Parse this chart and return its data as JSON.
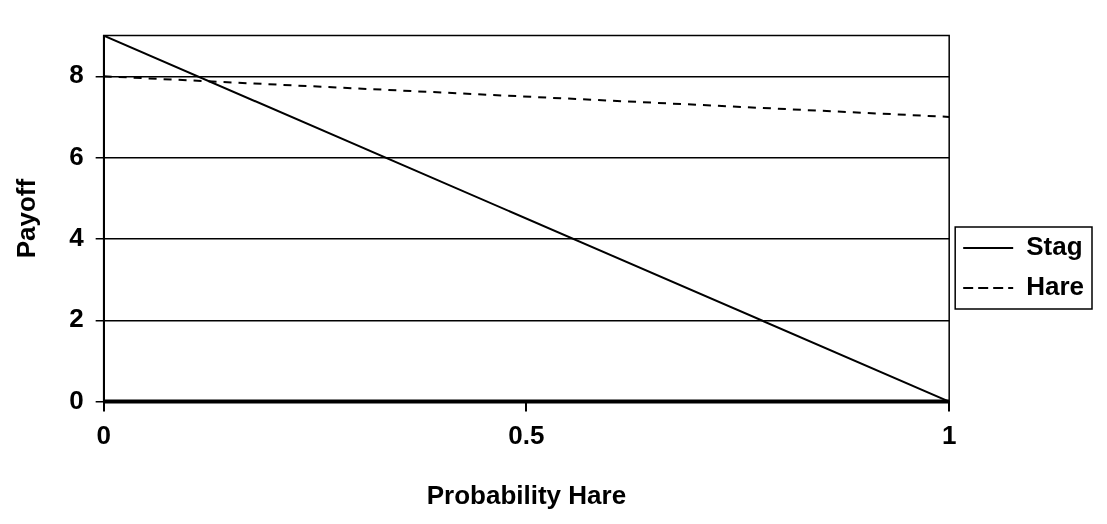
{
  "chart_data": {
    "type": "line",
    "xlabel": "Probability Hare",
    "ylabel": "Payoff",
    "x": [
      0,
      1
    ],
    "series": [
      {
        "name": "Stag",
        "color": "#000000",
        "values": [
          9,
          0
        ],
        "line_style": "solid"
      },
      {
        "name": "Hare",
        "color": "#000000",
        "values": [
          8,
          7
        ],
        "line_style": "dashed"
      }
    ],
    "xlim": [
      0,
      1
    ],
    "xticks": [
      0,
      0.5,
      1
    ],
    "ylim": [
      0,
      9
    ],
    "yticks": [
      0,
      2,
      4,
      6,
      8
    ],
    "grid": "y",
    "legend": "right",
    "marker": "none"
  }
}
